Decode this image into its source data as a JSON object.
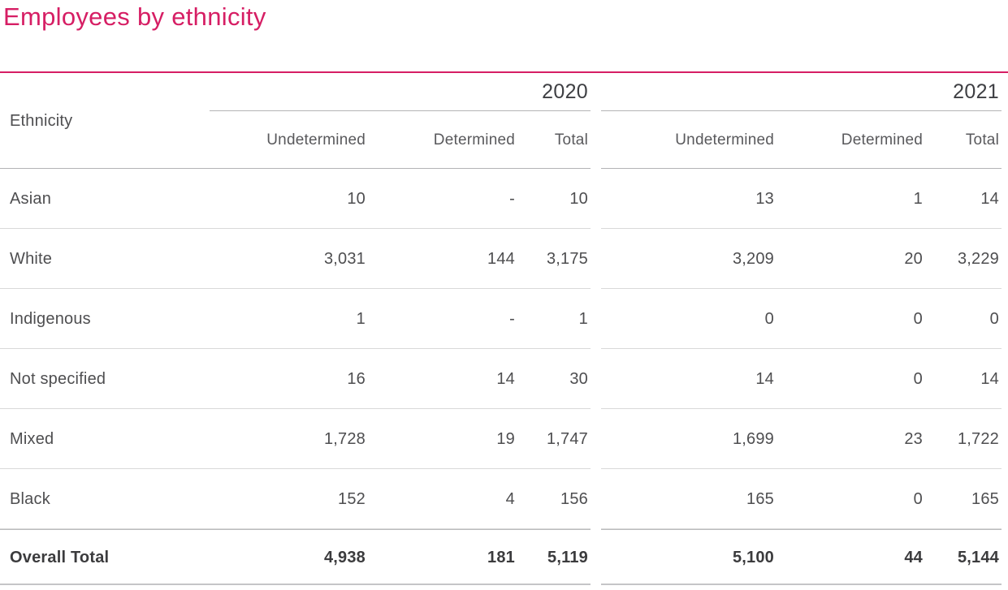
{
  "page": {
    "title": "Employees by ethnicity",
    "accent_color": "#d61e64"
  },
  "table": {
    "row_header": "Ethnicity",
    "year_groups": [
      {
        "year": "2020",
        "columns": {
          "undetermined": "Undetermined",
          "determined": "Determined",
          "total": "Total"
        }
      },
      {
        "year": "2021",
        "columns": {
          "undetermined": "Undetermined",
          "determined": "Determined",
          "total": "Total"
        }
      }
    ],
    "rows": [
      {
        "ethnicity": "Asian",
        "y2020": {
          "undetermined": "10",
          "determined": "-",
          "total": "10"
        },
        "y2021": {
          "undetermined": "13",
          "determined": "1",
          "total": "14"
        }
      },
      {
        "ethnicity": "White",
        "y2020": {
          "undetermined": "3,031",
          "determined": "144",
          "total": "3,175"
        },
        "y2021": {
          "undetermined": "3,209",
          "determined": "20",
          "total": "3,229"
        }
      },
      {
        "ethnicity": "Indigenous",
        "y2020": {
          "undetermined": "1",
          "determined": "-",
          "total": "1"
        },
        "y2021": {
          "undetermined": "0",
          "determined": "0",
          "total": "0"
        }
      },
      {
        "ethnicity": "Not specified",
        "y2020": {
          "undetermined": "16",
          "determined": "14",
          "total": "30"
        },
        "y2021": {
          "undetermined": "14",
          "determined": "0",
          "total": "14"
        }
      },
      {
        "ethnicity": "Mixed",
        "y2020": {
          "undetermined": "1,728",
          "determined": "19",
          "total": "1,747"
        },
        "y2021": {
          "undetermined": "1,699",
          "determined": "23",
          "total": "1,722"
        }
      },
      {
        "ethnicity": "Black",
        "y2020": {
          "undetermined": "152",
          "determined": "4",
          "total": "156"
        },
        "y2021": {
          "undetermined": "165",
          "determined": "0",
          "total": "165"
        }
      }
    ],
    "total_row": {
      "label": "Overall Total",
      "y2020": {
        "undetermined": "4,938",
        "determined": "181",
        "total": "5,119"
      },
      "y2021": {
        "undetermined": "5,100",
        "determined": "44",
        "total": "5,144"
      }
    }
  }
}
